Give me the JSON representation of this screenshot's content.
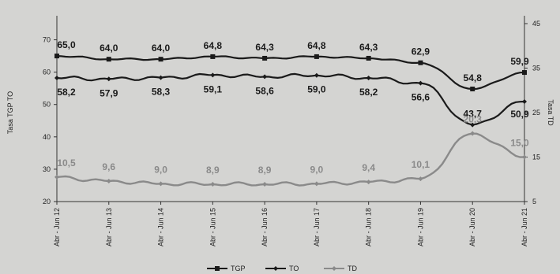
{
  "chart_data": {
    "type": "line",
    "x": [
      "Abr - Jun 12",
      "Abr - Jun 13",
      "Abr - Jun 14",
      "Abr - Jun 15",
      "Abr - Jun 16",
      "Abr - Jun 17",
      "Abr - Jun 18",
      "Abr - Jun 19",
      "Abr - Jun 20",
      "Abr - Jun 21"
    ],
    "ylabel": "Tasa TGP TO",
    "ylabel_right": "Tasa TD",
    "ylim": [
      20,
      75
    ],
    "ylim_right": [
      5,
      45
    ],
    "yticks": [
      20,
      30,
      40,
      50,
      60,
      70
    ],
    "yticks_right": [
      5,
      15,
      25,
      35,
      45
    ],
    "grid": false,
    "legend_position": "bottom",
    "series": [
      {
        "name": "TGP",
        "axis": "left",
        "color": "#1a1a1a",
        "marker": "square",
        "values": [
          65.0,
          64.0,
          64.0,
          64.8,
          64.3,
          64.8,
          64.3,
          62.9,
          54.8,
          59.9
        ],
        "labels": [
          "65,0",
          "64,0",
          "64,0",
          "64,8",
          "64,3",
          "64,8",
          "64,3",
          "62,9",
          "54,8",
          "59,9"
        ]
      },
      {
        "name": "TO",
        "axis": "left",
        "color": "#1a1a1a",
        "marker": "diamond",
        "values": [
          58.2,
          57.9,
          58.3,
          59.1,
          58.6,
          59.0,
          58.2,
          56.6,
          43.7,
          50.9
        ],
        "labels": [
          "58,2",
          "57,9",
          "58,3",
          "59,1",
          "58,6",
          "59,0",
          "58,2",
          "56,6",
          "43,7",
          "50,9"
        ]
      },
      {
        "name": "TD",
        "axis": "right",
        "color": "#8a8a8a",
        "marker": "diamond",
        "values": [
          10.5,
          9.6,
          9.0,
          8.9,
          8.9,
          9.0,
          9.4,
          10.1,
          20.3,
          15.0
        ],
        "labels": [
          "10,5",
          "9,6",
          "9,0",
          "8,9",
          "8,9",
          "9,0",
          "9,4",
          "10,1",
          "20,3",
          "15,0"
        ]
      }
    ]
  }
}
